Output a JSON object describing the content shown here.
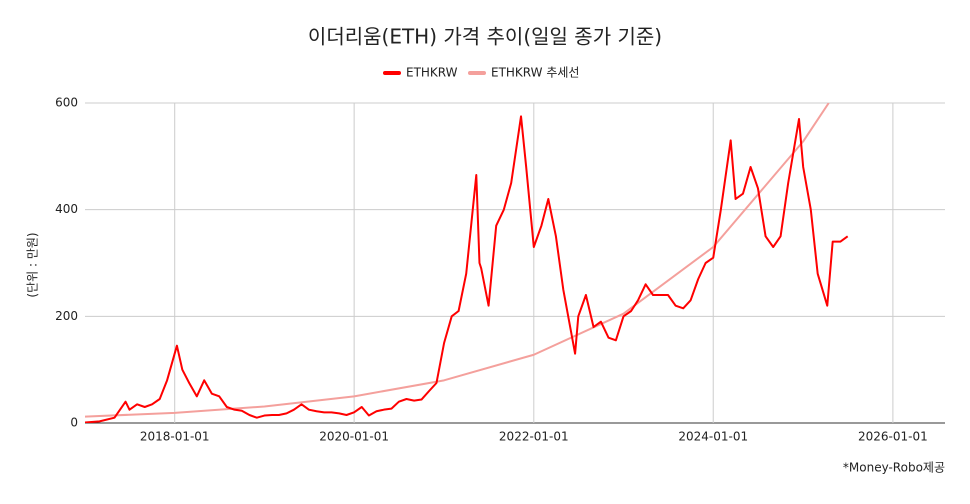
{
  "chart_data": {
    "type": "line",
    "title": "이더리움(ETH) 가격 추이(일일 종가 기준)",
    "y_label": "(단위 : 만원)",
    "footnote": "*Money-Robo제공",
    "xlim": [
      "2017-01-01",
      "2026-08-01"
    ],
    "xticks": [
      "2018-01-01",
      "2020-01-01",
      "2022-01-01",
      "2024-01-01",
      "2026-01-01"
    ],
    "ylim": [
      0,
      600
    ],
    "yticks": [
      0,
      200,
      400,
      600
    ],
    "grid": true,
    "legend": "top",
    "series": [
      {
        "name": "ETHKRW",
        "color": "#ff0000",
        "x": [
          "2017-01-01",
          "2017-03-01",
          "2017-05-01",
          "2017-06-15",
          "2017-07-01",
          "2017-08-01",
          "2017-09-01",
          "2017-10-01",
          "2017-11-01",
          "2017-12-01",
          "2018-01-10",
          "2018-02-01",
          "2018-03-01",
          "2018-04-01",
          "2018-05-01",
          "2018-06-01",
          "2018-07-01",
          "2018-08-01",
          "2018-09-01",
          "2018-10-01",
          "2018-11-01",
          "2018-12-01",
          "2019-01-01",
          "2019-02-01",
          "2019-03-01",
          "2019-04-01",
          "2019-05-01",
          "2019-06-01",
          "2019-07-01",
          "2019-08-01",
          "2019-09-01",
          "2019-10-01",
          "2019-11-01",
          "2019-12-01",
          "2020-01-01",
          "2020-02-01",
          "2020-03-01",
          "2020-04-01",
          "2020-05-01",
          "2020-06-01",
          "2020-07-01",
          "2020-08-01",
          "2020-09-01",
          "2020-10-01",
          "2020-11-01",
          "2020-12-01",
          "2021-01-01",
          "2021-02-01",
          "2021-03-01",
          "2021-04-01",
          "2021-05-12",
          "2021-05-25",
          "2021-06-01",
          "2021-07-01",
          "2021-08-01",
          "2021-09-01",
          "2021-10-01",
          "2021-11-10",
          "2021-12-01",
          "2022-01-01",
          "2022-02-01",
          "2022-03-01",
          "2022-04-01",
          "2022-05-01",
          "2022-06-18",
          "2022-07-01",
          "2022-08-01",
          "2022-09-01",
          "2022-10-01",
          "2022-11-01",
          "2022-12-01",
          "2023-01-01",
          "2023-02-01",
          "2023-03-01",
          "2023-04-01",
          "2023-05-01",
          "2023-06-01",
          "2023-07-01",
          "2023-08-01",
          "2023-09-01",
          "2023-10-01",
          "2023-11-01",
          "2023-12-01",
          "2024-01-01",
          "2024-02-01",
          "2024-03-12",
          "2024-04-01",
          "2024-05-01",
          "2024-06-01",
          "2024-07-01",
          "2024-08-01",
          "2024-09-01",
          "2024-10-01",
          "2024-11-01",
          "2024-12-15",
          "2025-01-01",
          "2025-02-01",
          "2025-03-01",
          "2025-04-09",
          "2025-05-01",
          "2025-06-01",
          "2025-07-01"
        ],
        "values": [
          1,
          3,
          10,
          40,
          25,
          35,
          30,
          35,
          45,
          80,
          145,
          100,
          75,
          50,
          80,
          55,
          50,
          30,
          25,
          23,
          15,
          10,
          14,
          15,
          15,
          18,
          25,
          35,
          25,
          22,
          20,
          20,
          18,
          15,
          20,
          30,
          14,
          22,
          25,
          27,
          40,
          45,
          42,
          44,
          60,
          75,
          150,
          200,
          210,
          280,
          465,
          300,
          290,
          220,
          370,
          400,
          450,
          575,
          480,
          330,
          370,
          420,
          350,
          250,
          130,
          200,
          240,
          180,
          190,
          160,
          155,
          200,
          210,
          230,
          260,
          240,
          240,
          240,
          220,
          215,
          230,
          270,
          300,
          310,
          400,
          530,
          420,
          430,
          480,
          440,
          350,
          330,
          350,
          450,
          570,
          480,
          400,
          280,
          220,
          340,
          340,
          350
        ]
      },
      {
        "name": "ETHKRW 추세선",
        "color": "#f4a09c",
        "x": [
          "2017-01-01",
          "2018-01-01",
          "2019-01-01",
          "2020-01-01",
          "2021-01-01",
          "2022-01-01",
          "2023-01-01",
          "2024-01-01",
          "2025-01-01",
          "2025-04-15"
        ],
        "values": [
          12,
          19,
          31,
          50,
          80,
          128,
          205,
          330,
          528,
          600
        ]
      }
    ]
  }
}
